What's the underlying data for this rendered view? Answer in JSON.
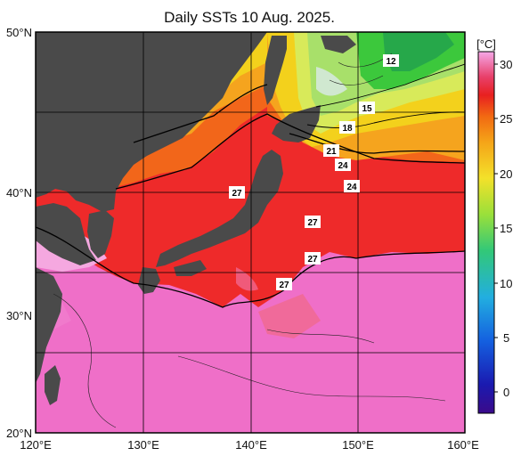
{
  "title": "Daily SSTs 10 Aug. 2025.",
  "axes": {
    "lat_labels": [
      "50°N",
      "40°N",
      "30°N",
      "20°N"
    ],
    "lon_labels": [
      "120°E",
      "130°E",
      "140°E",
      "150°E",
      "160°E"
    ]
  },
  "colorbar": {
    "unit": "[°C]",
    "ticks": [
      "30",
      "25",
      "20",
      "15",
      "10",
      "5",
      "0"
    ]
  },
  "isotherm_labels": [
    "12",
    "15",
    "18",
    "21",
    "24",
    "24",
    "27",
    "27",
    "27",
    "27"
  ],
  "colors": {
    "land": "#4a4a4a",
    "warm_pink": "#ef6fc8",
    "red": "#ee2222",
    "orange": "#f26a12",
    "yellow": "#f5d21a",
    "green": "#3cc83c"
  }
}
